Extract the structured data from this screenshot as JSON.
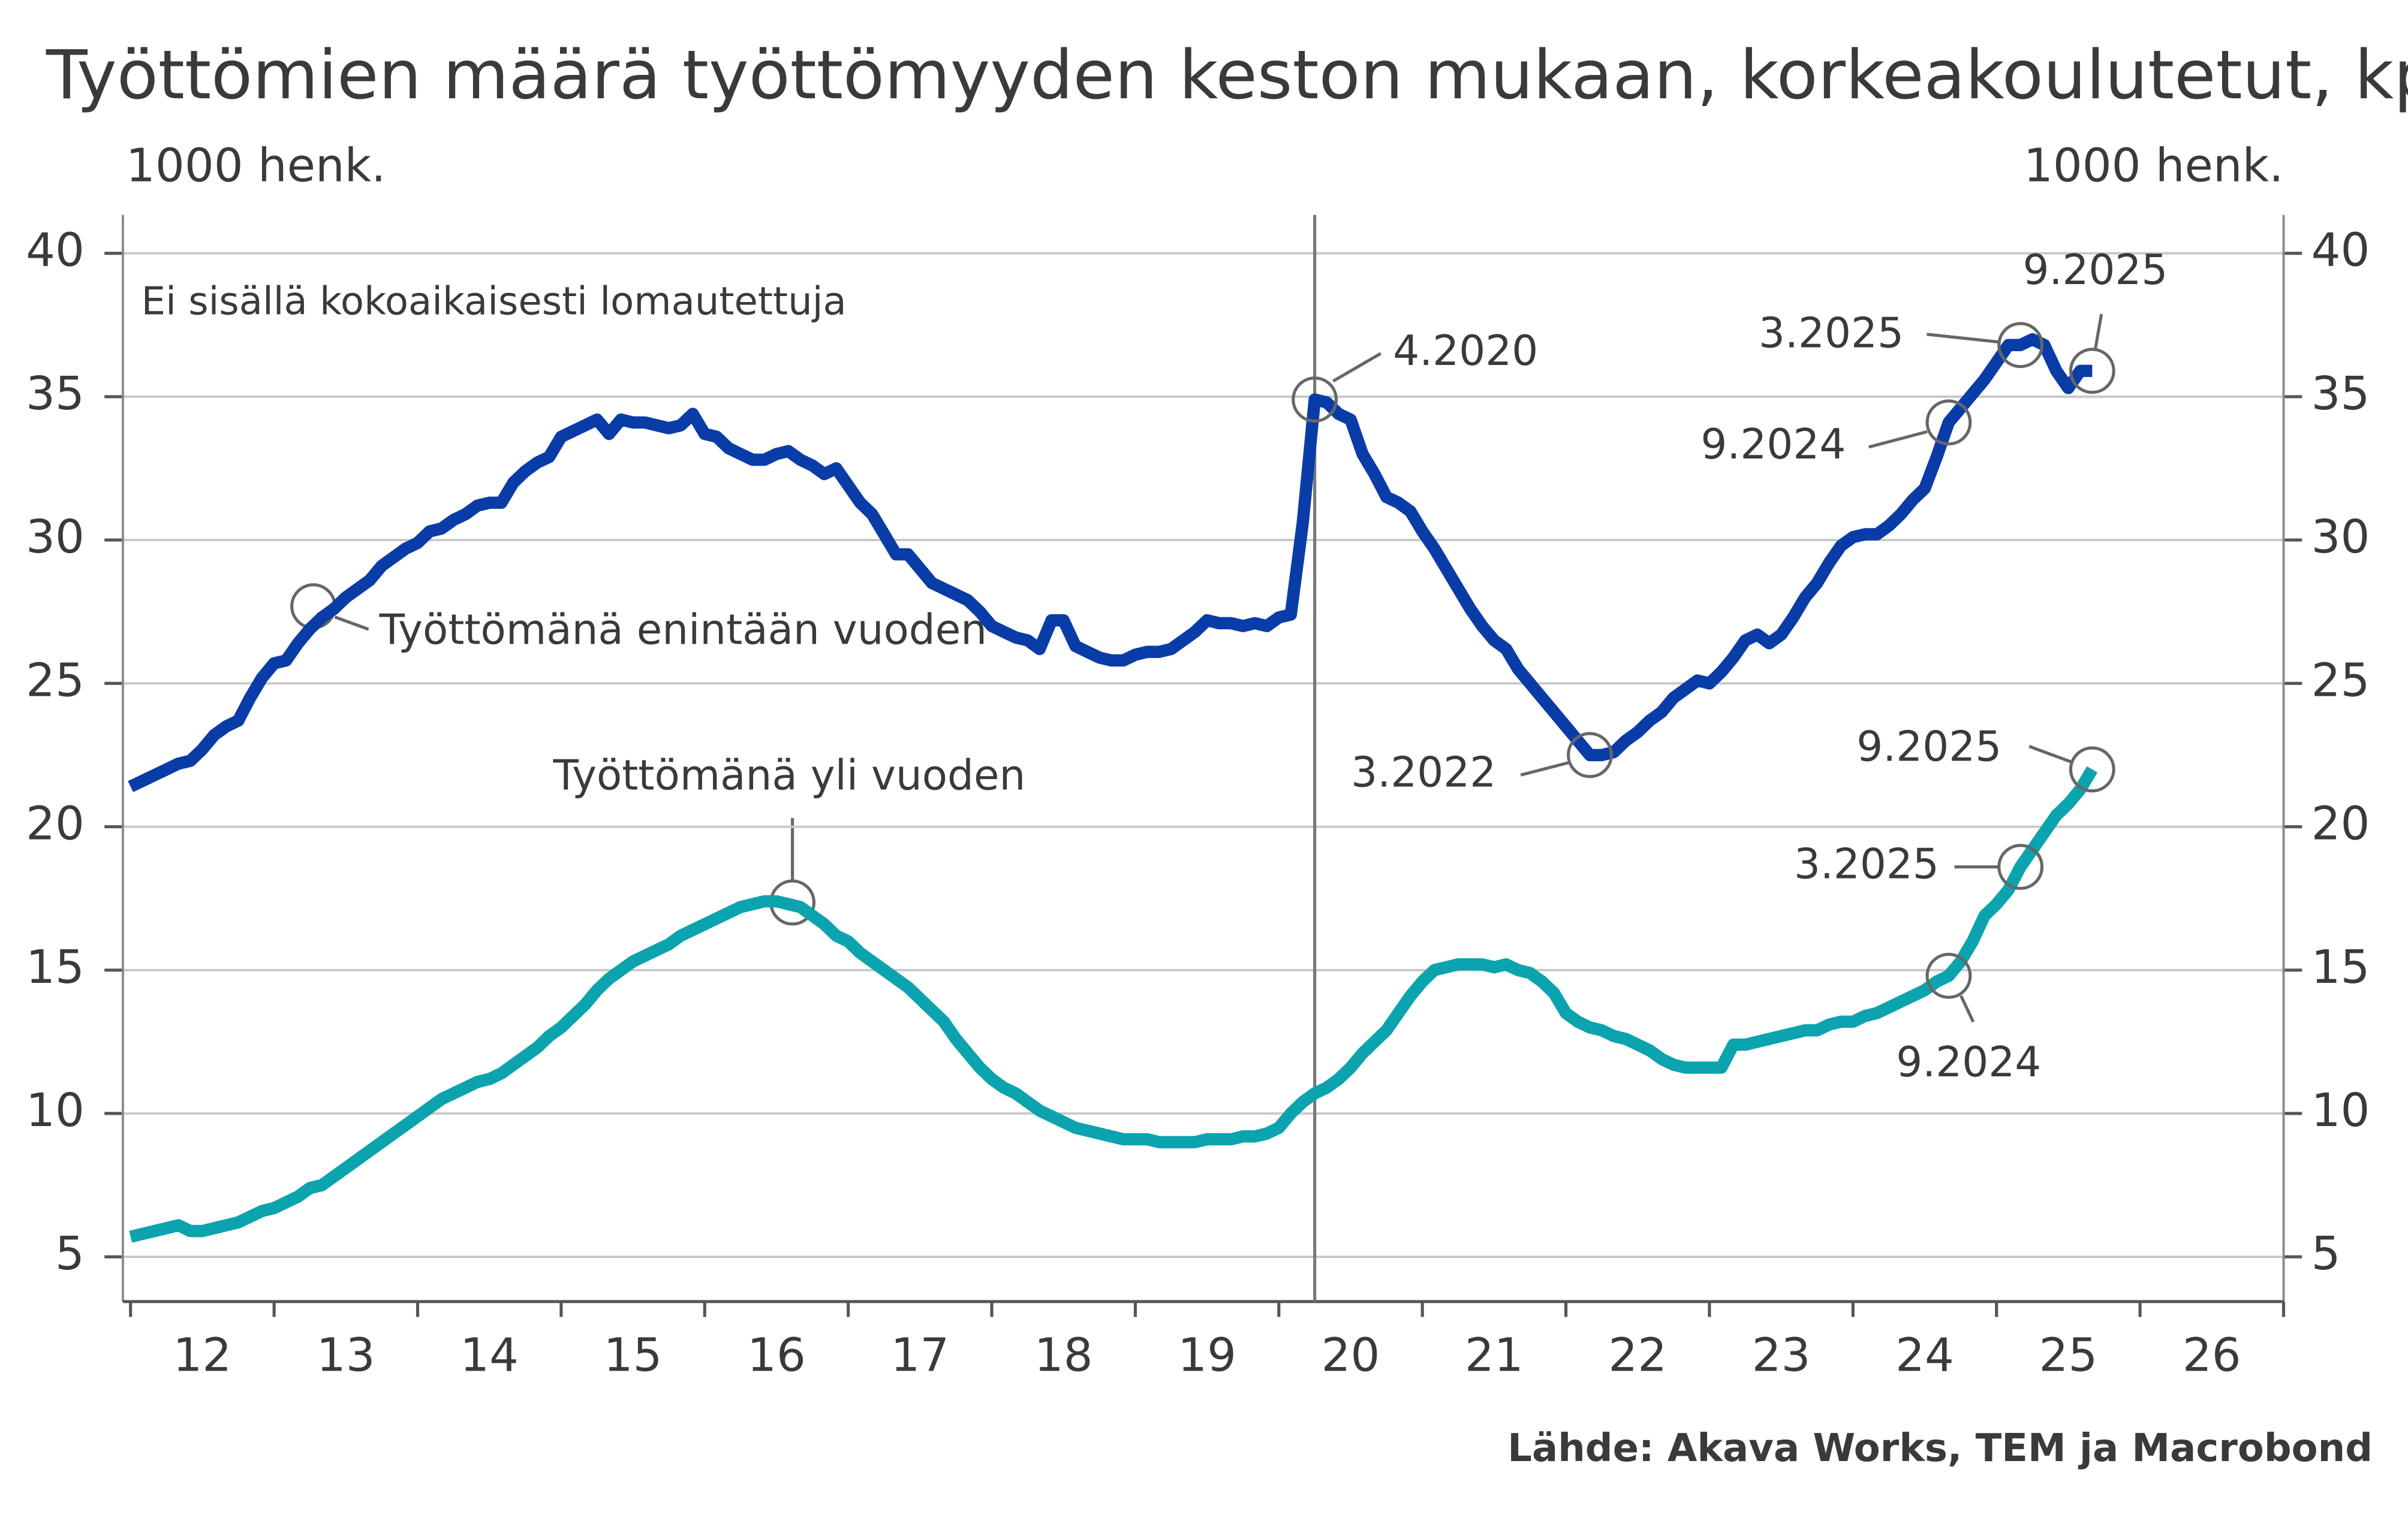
{
  "chart_data": {
    "type": "line",
    "title": "Työttömien määrä työttömyyden keston mukaan, korkeakoulutetut, kp",
    "ylabel": "1000 henk.",
    "y2label": "1000 henk.",
    "note": "Ei sisällä kokoaikaisesti lomautettuja",
    "source": "Lähde: Akava Works, TEM ja Macrobond",
    "xlim": [
      2012,
      2027
    ],
    "xticks": [
      {
        "value": 2012.5,
        "label": "12"
      },
      {
        "value": 2013.5,
        "label": "13"
      },
      {
        "value": 2014.5,
        "label": "14"
      },
      {
        "value": 2015.5,
        "label": "15"
      },
      {
        "value": 2016.5,
        "label": "16"
      },
      {
        "value": 2017.5,
        "label": "17"
      },
      {
        "value": 2018.5,
        "label": "18"
      },
      {
        "value": 2019.5,
        "label": "19"
      },
      {
        "value": 2020.5,
        "label": "20"
      },
      {
        "value": 2021.5,
        "label": "21"
      },
      {
        "value": 2022.5,
        "label": "22"
      },
      {
        "value": 2023.5,
        "label": "23"
      },
      {
        "value": 2024.5,
        "label": "24"
      },
      {
        "value": 2025.5,
        "label": "25"
      },
      {
        "value": 2026.5,
        "label": "26"
      }
    ],
    "minor_xticks": [
      2012,
      2013,
      2014,
      2015,
      2016,
      2017,
      2018,
      2019,
      2020,
      2021,
      2022,
      2023,
      2024,
      2025,
      2026,
      2027
    ],
    "ylim": [
      3.6,
      41.34
    ],
    "yticks": [
      5,
      10,
      15,
      20,
      25,
      30,
      35,
      40
    ],
    "y2lim": [
      3.6,
      41.34
    ],
    "y2ticks": [
      5,
      10,
      15,
      20,
      25,
      30,
      35,
      40
    ],
    "grid": true,
    "vline": "4.2020",
    "x": [
      "1.2012",
      "2.2012",
      "3.2012",
      "4.2012",
      "5.2012",
      "6.2012",
      "7.2012",
      "8.2012",
      "9.2012",
      "10.2012",
      "11.2012",
      "12.2012",
      "1.2013",
      "2.2013",
      "3.2013",
      "4.2013",
      "5.2013",
      "6.2013",
      "7.2013",
      "8.2013",
      "9.2013",
      "10.2013",
      "11.2013",
      "12.2013",
      "1.2014",
      "2.2014",
      "3.2014",
      "4.2014",
      "5.2014",
      "6.2014",
      "7.2014",
      "8.2014",
      "9.2014",
      "10.2014",
      "11.2014",
      "12.2014",
      "1.2015",
      "2.2015",
      "3.2015",
      "4.2015",
      "5.2015",
      "6.2015",
      "7.2015",
      "8.2015",
      "9.2015",
      "10.2015",
      "11.2015",
      "12.2015",
      "1.2016",
      "2.2016",
      "3.2016",
      "4.2016",
      "5.2016",
      "6.2016",
      "7.2016",
      "8.2016",
      "9.2016",
      "10.2016",
      "11.2016",
      "12.2016",
      "1.2017",
      "2.2017",
      "3.2017",
      "4.2017",
      "5.2017",
      "6.2017",
      "7.2017",
      "8.2017",
      "9.2017",
      "10.2017",
      "11.2017",
      "12.2017",
      "1.2018",
      "2.2018",
      "3.2018",
      "4.2018",
      "5.2018",
      "6.2018",
      "7.2018",
      "8.2018",
      "9.2018",
      "10.2018",
      "11.2018",
      "12.2018",
      "1.2019",
      "2.2019",
      "3.2019",
      "4.2019",
      "5.2019",
      "6.2019",
      "7.2019",
      "8.2019",
      "9.2019",
      "10.2019",
      "11.2019",
      "12.2019",
      "1.2020",
      "2.2020",
      "3.2020",
      "4.2020",
      "5.2020",
      "6.2020",
      "7.2020",
      "8.2020",
      "9.2020",
      "10.2020",
      "11.2020",
      "12.2020",
      "1.2021",
      "2.2021",
      "3.2021",
      "4.2021",
      "5.2021",
      "6.2021",
      "7.2021",
      "8.2021",
      "9.2021",
      "10.2021",
      "11.2021",
      "12.2021",
      "1.2022",
      "2.2022",
      "3.2022",
      "4.2022",
      "5.2022",
      "6.2022",
      "7.2022",
      "8.2022",
      "9.2022",
      "10.2022",
      "11.2022",
      "12.2022",
      "1.2023",
      "2.2023",
      "3.2023",
      "4.2023",
      "5.2023",
      "6.2023",
      "7.2023",
      "8.2023",
      "9.2023",
      "10.2023",
      "11.2023",
      "12.2023",
      "1.2024",
      "2.2024",
      "3.2024",
      "4.2024",
      "5.2024",
      "6.2024",
      "7.2024",
      "8.2024",
      "9.2024",
      "10.2024",
      "11.2024",
      "12.2024",
      "1.2025",
      "2.2025",
      "3.2025",
      "4.2025",
      "5.2025",
      "6.2025",
      "7.2025",
      "8.2025",
      "9.2025"
    ],
    "series": [
      {
        "name": "Työttömänä enintään vuoden",
        "color": "#0a3ca8",
        "values": [
          21.4,
          21.6,
          21.8,
          22.0,
          22.2,
          22.3,
          22.7,
          23.2,
          23.5,
          23.7,
          24.5,
          25.2,
          25.7,
          25.8,
          26.4,
          26.9,
          27.3,
          27.6,
          28.0,
          28.3,
          28.6,
          29.1,
          29.4,
          29.7,
          29.9,
          30.3,
          30.4,
          30.7,
          30.9,
          31.2,
          31.3,
          31.3,
          32.0,
          32.4,
          32.7,
          32.9,
          33.6,
          33.8,
          34.0,
          34.2,
          33.7,
          34.2,
          34.1,
          34.1,
          34.0,
          33.9,
          34.0,
          34.4,
          33.7,
          33.6,
          33.2,
          33.0,
          32.8,
          32.8,
          33.0,
          33.1,
          32.8,
          32.6,
          32.3,
          32.5,
          31.9,
          31.3,
          30.9,
          30.2,
          29.5,
          29.5,
          29.0,
          28.5,
          28.3,
          28.1,
          27.9,
          27.5,
          27.0,
          26.8,
          26.6,
          26.5,
          26.2,
          27.2,
          27.2,
          26.3,
          26.1,
          25.9,
          25.8,
          25.8,
          26.0,
          26.1,
          26.1,
          26.2,
          26.5,
          26.8,
          27.2,
          27.1,
          27.1,
          27.0,
          27.1,
          27.0,
          27.3,
          27.4,
          30.6,
          34.9,
          34.8,
          34.4,
          34.2,
          33.0,
          32.3,
          31.5,
          31.3,
          31.0,
          30.3,
          29.7,
          29.0,
          28.3,
          27.6,
          27.0,
          26.5,
          26.2,
          25.5,
          25.0,
          24.5,
          24.0,
          23.5,
          23.0,
          22.5,
          22.5,
          22.6,
          23.0,
          23.3,
          23.7,
          24.0,
          24.5,
          24.8,
          25.1,
          25.0,
          25.4,
          25.9,
          26.5,
          26.7,
          26.4,
          26.7,
          27.3,
          28.0,
          28.5,
          29.2,
          29.8,
          30.1,
          30.2,
          30.2,
          30.5,
          30.9,
          31.4,
          31.8,
          32.9,
          34.1,
          34.6,
          35.1,
          35.6,
          36.2,
          36.8,
          36.8,
          37.0,
          36.8,
          35.9,
          35.3,
          35.9,
          35.9
        ]
      },
      {
        "name": "Työttömänä yli vuoden",
        "color": "#0ba3ae",
        "values": [
          5.7,
          5.8,
          5.9,
          6.0,
          6.1,
          5.9,
          5.9,
          6.0,
          6.1,
          6.2,
          6.4,
          6.6,
          6.7,
          6.9,
          7.1,
          7.4,
          7.5,
          7.8,
          8.1,
          8.4,
          8.7,
          9.0,
          9.3,
          9.6,
          9.9,
          10.2,
          10.5,
          10.7,
          10.9,
          11.1,
          11.2,
          11.4,
          11.7,
          12.0,
          12.3,
          12.7,
          13.0,
          13.4,
          13.8,
          14.3,
          14.7,
          15.0,
          15.3,
          15.5,
          15.7,
          15.9,
          16.2,
          16.4,
          16.6,
          16.8,
          17.0,
          17.2,
          17.3,
          17.4,
          17.4,
          17.3,
          17.2,
          16.9,
          16.6,
          16.2,
          16.0,
          15.6,
          15.3,
          15.0,
          14.7,
          14.4,
          14.0,
          13.6,
          13.2,
          12.6,
          12.1,
          11.6,
          11.2,
          10.9,
          10.7,
          10.4,
          10.1,
          9.9,
          9.7,
          9.5,
          9.4,
          9.3,
          9.2,
          9.1,
          9.1,
          9.1,
          9.0,
          9.0,
          9.0,
          9.0,
          9.1,
          9.1,
          9.1,
          9.2,
          9.2,
          9.3,
          9.5,
          10.0,
          10.4,
          10.7,
          10.9,
          11.2,
          11.6,
          12.1,
          12.5,
          12.9,
          13.5,
          14.1,
          14.6,
          15.0,
          15.1,
          15.2,
          15.2,
          15.2,
          15.1,
          15.2,
          15.0,
          14.9,
          14.6,
          14.2,
          13.5,
          13.2,
          13.0,
          12.9,
          12.7,
          12.6,
          12.4,
          12.2,
          11.9,
          11.7,
          11.6,
          11.6,
          11.6,
          11.6,
          12.4,
          12.4,
          12.5,
          12.6,
          12.7,
          12.8,
          12.9,
          12.9,
          13.1,
          13.2,
          13.2,
          13.4,
          13.5,
          13.7,
          13.9,
          14.1,
          14.3,
          14.6,
          14.8,
          15.3,
          16.0,
          16.9,
          17.3,
          17.8,
          18.6,
          19.2,
          19.8,
          20.4,
          20.8,
          21.3,
          22.0
        ]
      }
    ],
    "annotations": [
      {
        "text": "4.2020",
        "series": 0
      },
      {
        "text": "3.2025",
        "series": 0
      },
      {
        "text": "9.2025",
        "series": 0
      },
      {
        "text": "9.2024",
        "series": 0
      },
      {
        "text": "3.2022",
        "series": 0
      },
      {
        "text": "9.2025",
        "series": 1
      },
      {
        "text": "3.2025",
        "series": 1
      },
      {
        "text": "9.2024",
        "series": 1
      }
    ]
  }
}
